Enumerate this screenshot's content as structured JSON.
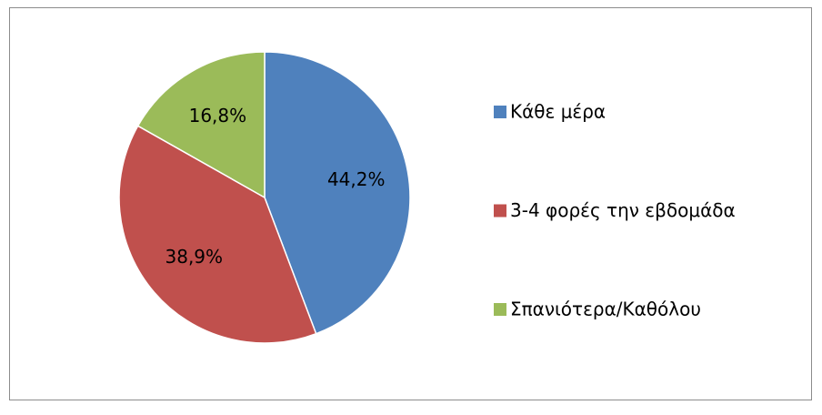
{
  "chart_data": {
    "type": "pie",
    "categories": [
      "Κάθε μέρα",
      "3-4 φορές την εβδομάδα",
      "Σπανιότερα/Καθόλου"
    ],
    "values": [
      44.2,
      38.9,
      16.8
    ],
    "value_labels": [
      "44,2%",
      "38,9%",
      "16,8%"
    ],
    "colors": [
      "#4f81bd",
      "#c0504d",
      "#9bbb59"
    ],
    "legend": "right"
  }
}
